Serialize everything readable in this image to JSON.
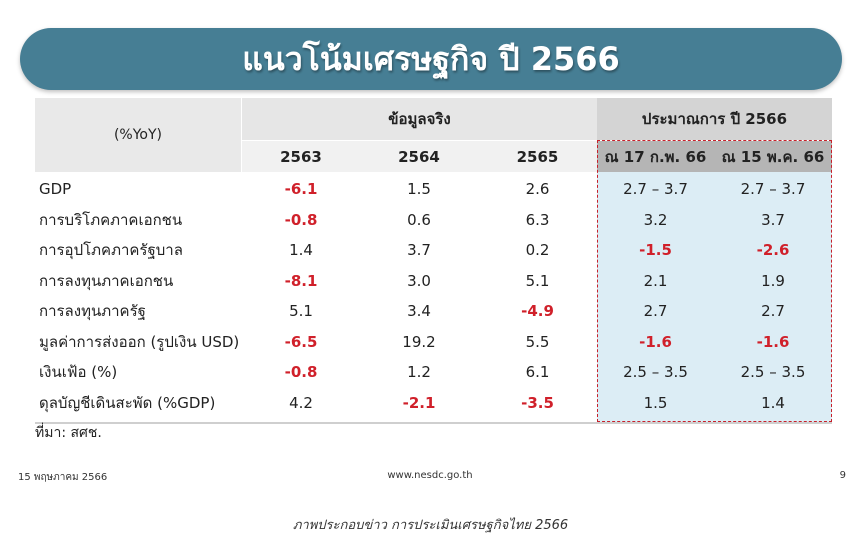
{
  "title": "แนวโน้มเศรษฐกิจ ปี 2566",
  "table": {
    "corner": "(%YoY)",
    "groups": [
      "ข้อมูลจริง",
      "ประมาณการ ปี 2566"
    ],
    "columns": [
      "2563",
      "2564",
      "2565",
      "ณ 17 ก.พ. 66",
      "ณ 15 พ.ค. 66"
    ],
    "rows": [
      [
        "GDP",
        "-6.1",
        "1.5",
        "2.6",
        "2.7 – 3.7",
        "2.7 – 3.7"
      ],
      [
        "การบริโภคภาคเอกชน",
        "-0.8",
        "0.6",
        "6.3",
        "3.2",
        "3.7"
      ],
      [
        "การอุปโภคภาครัฐบาล",
        "1.4",
        "3.7",
        "0.2",
        "-1.5",
        "-2.6"
      ],
      [
        "การลงทุนภาคเอกชน",
        "-8.1",
        "3.0",
        "5.1",
        "2.1",
        "1.9"
      ],
      [
        "การลงทุนภาครัฐ",
        "5.1",
        "3.4",
        "-4.9",
        "2.7",
        "2.7"
      ],
      [
        "มูลค่าการส่งออก (รูปเงิน USD)",
        "-6.5",
        "19.2",
        "5.5",
        "-1.6",
        "-1.6"
      ],
      [
        "เงินเฟ้อ (%)",
        "-0.8",
        "1.2",
        "6.1",
        "2.5 – 3.5",
        "2.5 – 3.5"
      ],
      [
        "ดุลบัญชีเดินสะพัด (%GDP)",
        "4.2",
        "-2.1",
        "-3.5",
        "1.5",
        "1.4"
      ]
    ]
  },
  "source": "ที่มา: สศช.",
  "footer": {
    "date": "15 พฤษภาคม 2566",
    "url": "www.nesdc.go.th",
    "page": "9"
  },
  "caption": "ภาพประกอบข่าว การประเมินเศรษฐกิจไทย 2566"
}
